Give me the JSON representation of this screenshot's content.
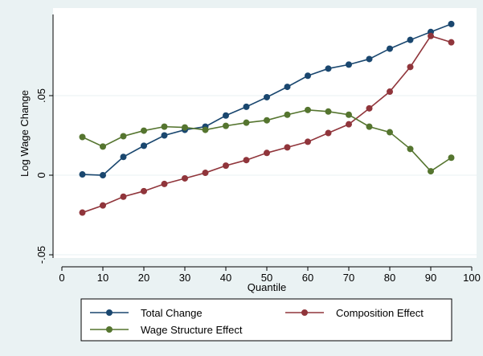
{
  "chart_data": {
    "type": "line",
    "xlabel": "Quantile",
    "ylabel": "Log Wage Change",
    "xlim": [
      0,
      100
    ],
    "ylim": [
      -0.052,
      0.101
    ],
    "x_ticks": [
      0,
      10,
      20,
      30,
      40,
      50,
      60,
      70,
      80,
      90,
      100
    ],
    "x_tick_labels": [
      "0",
      "10",
      "20",
      "30",
      "40",
      "50",
      "60",
      "70",
      "80",
      "90",
      "100"
    ],
    "y_ticks": [
      -0.05,
      0,
      0.05
    ],
    "y_tick_labels": [
      "-.05",
      "0",
      ".05"
    ],
    "grid": "horizontal",
    "legend_position": "bottom",
    "x": [
      5,
      10,
      15,
      20,
      25,
      30,
      35,
      40,
      45,
      50,
      55,
      60,
      65,
      70,
      75,
      80,
      85,
      90,
      95
    ],
    "series": [
      {
        "name": "Total Change",
        "color": "#1a476f",
        "values": [
          0.0005,
          0.0,
          0.0115,
          0.0185,
          0.025,
          0.0285,
          0.0305,
          0.0375,
          0.043,
          0.049,
          0.0555,
          0.0625,
          0.067,
          0.0695,
          0.073,
          0.0795,
          0.085,
          0.09,
          0.095
        ]
      },
      {
        "name": "Composition Effect",
        "color": "#90353b",
        "values": [
          -0.0235,
          -0.019,
          -0.0135,
          -0.01,
          -0.0055,
          -0.002,
          0.0015,
          0.006,
          0.0095,
          0.014,
          0.0175,
          0.021,
          0.0265,
          0.032,
          0.042,
          0.0525,
          0.068,
          0.0875,
          0.0835
        ]
      },
      {
        "name": "Wage Structure Effect",
        "color": "#55752f",
        "values": [
          0.024,
          0.018,
          0.0245,
          0.028,
          0.0305,
          0.03,
          0.0285,
          0.031,
          0.033,
          0.0345,
          0.038,
          0.041,
          0.04,
          0.038,
          0.0305,
          0.027,
          0.0165,
          0.0025,
          0.011
        ]
      }
    ]
  }
}
